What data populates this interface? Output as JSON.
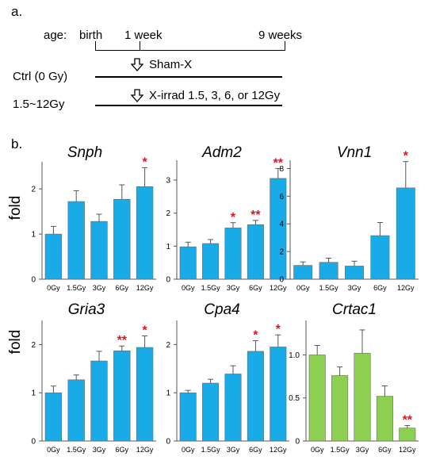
{
  "panel_a": {
    "label": "a.",
    "age_label": "age:",
    "timepoints": [
      "birth",
      "1 week",
      "9 weeks"
    ],
    "rows": [
      {
        "group": "Ctrl (0 Gy)",
        "treatment": "Sham-X"
      },
      {
        "group": "1.5~12Gy",
        "treatment": "X-irrad 1.5, 3, 6, or 12Gy"
      }
    ]
  },
  "panel_b": {
    "label": "b.",
    "ylabel": "fold",
    "colors": {
      "blue": "#19aae8",
      "green": "#8dd051",
      "star": "#e0141e"
    }
  },
  "chart_data": [
    {
      "type": "bar",
      "title": "Snph",
      "categories": [
        "0Gy",
        "1.5Gy",
        "3Gy",
        "6Gy",
        "12Gy"
      ],
      "values": [
        1.0,
        1.72,
        1.28,
        1.77,
        2.05
      ],
      "errors": [
        0.17,
        0.24,
        0.16,
        0.32,
        0.42
      ],
      "significance": [
        "",
        "",
        "",
        "",
        "*"
      ],
      "ylim": [
        0,
        2.6
      ],
      "yticks": [
        "0",
        "1",
        "2"
      ],
      "ytick_values": [
        0,
        1,
        2
      ],
      "color": "#19aae8"
    },
    {
      "type": "bar",
      "title": "Adm2",
      "categories": [
        "0Gy",
        "1.5Gy",
        "3Gy",
        "6Gy",
        "12Gy"
      ],
      "values": [
        0.98,
        1.08,
        1.55,
        1.65,
        3.05
      ],
      "errors": [
        0.14,
        0.12,
        0.16,
        0.13,
        0.3
      ],
      "significance": [
        "",
        "",
        "*",
        "**",
        "**"
      ],
      "ylim": [
        0,
        3.6
      ],
      "yticks": [
        "0",
        "1",
        "2",
        "3"
      ],
      "ytick_values": [
        0,
        1,
        2,
        3
      ],
      "color": "#19aae8"
    },
    {
      "type": "bar",
      "title": "Vnn1",
      "categories": [
        "0Gy",
        "1.5Gy",
        "3Gy",
        "6Gy",
        "12Gy"
      ],
      "values": [
        1.0,
        1.22,
        0.95,
        3.15,
        6.6
      ],
      "errors": [
        0.25,
        0.3,
        0.35,
        0.95,
        1.9
      ],
      "significance": [
        "",
        "",
        "",
        "",
        "*"
      ],
      "ylim": [
        0,
        8.6
      ],
      "yticks": [
        "0",
        "2",
        "4",
        "6",
        "8"
      ],
      "ytick_values": [
        0,
        2,
        4,
        6,
        8
      ],
      "color": "#19aae8"
    },
    {
      "type": "bar",
      "title": "Gria3",
      "categories": [
        "0Gy",
        "1.5Gy",
        "3Gy",
        "6Gy",
        "12Gy"
      ],
      "values": [
        1.0,
        1.27,
        1.66,
        1.87,
        1.94
      ],
      "errors": [
        0.14,
        0.1,
        0.2,
        0.1,
        0.24
      ],
      "significance": [
        "",
        "",
        "",
        "**",
        "*"
      ],
      "ylim": [
        0,
        2.5
      ],
      "yticks": [
        "0",
        "1",
        "2"
      ],
      "ytick_values": [
        0,
        1,
        2
      ],
      "color": "#19aae8"
    },
    {
      "type": "bar",
      "title": "Cpa4",
      "categories": [
        "0Gy",
        "1.5Gy",
        "3Gy",
        "6Gy",
        "12Gy"
      ],
      "values": [
        1.0,
        1.2,
        1.39,
        1.86,
        1.95
      ],
      "errors": [
        0.05,
        0.08,
        0.17,
        0.22,
        0.25
      ],
      "significance": [
        "",
        "",
        "",
        "*",
        "*"
      ],
      "ylim": [
        0,
        2.5
      ],
      "yticks": [
        "0",
        "1",
        "2"
      ],
      "ytick_values": [
        0,
        1,
        2
      ],
      "color": "#19aae8"
    },
    {
      "type": "bar",
      "title": "Crtac1",
      "categories": [
        "0Gy",
        "1.5Gy",
        "3Gy",
        "6Gy",
        "12Gy"
      ],
      "values": [
        1.0,
        0.76,
        1.02,
        0.52,
        0.15
      ],
      "errors": [
        0.11,
        0.1,
        0.27,
        0.12,
        0.03
      ],
      "significance": [
        "",
        "",
        "",
        "",
        "**"
      ],
      "ylim": [
        0,
        1.4
      ],
      "yticks": [
        "0",
        "0.5",
        "1.0"
      ],
      "ytick_values": [
        0,
        0.5,
        1.0
      ],
      "color": "#8dd051"
    }
  ]
}
